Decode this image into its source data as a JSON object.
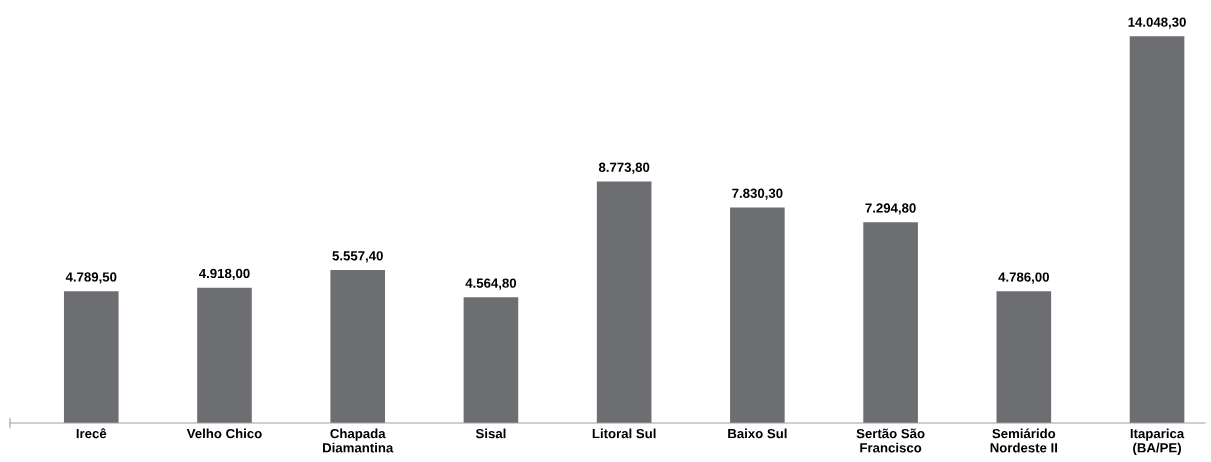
{
  "chart_data": {
    "type": "bar",
    "categories": [
      "Irecê",
      "Velho Chico",
      "Chapada\nDiamantina",
      "Sisal",
      "Litoral Sul",
      "Baixo Sul",
      "Sertão São\nFrancisco",
      "Semiárido\nNordeste II",
      "Itaparica\n(BA/PE)"
    ],
    "values": [
      4789.5,
      4918.0,
      5557.4,
      4564.8,
      8773.8,
      7830.3,
      7294.8,
      4786.0,
      14048.3
    ],
    "value_labels": [
      "4.789,50",
      "4.918,00",
      "5.557,40",
      "4.564,80",
      "8.773,80",
      "7.830,30",
      "7.294,80",
      "4.786,00",
      "14.048,30"
    ],
    "color": "#6d6e71",
    "grid": false,
    "legend": false
  }
}
